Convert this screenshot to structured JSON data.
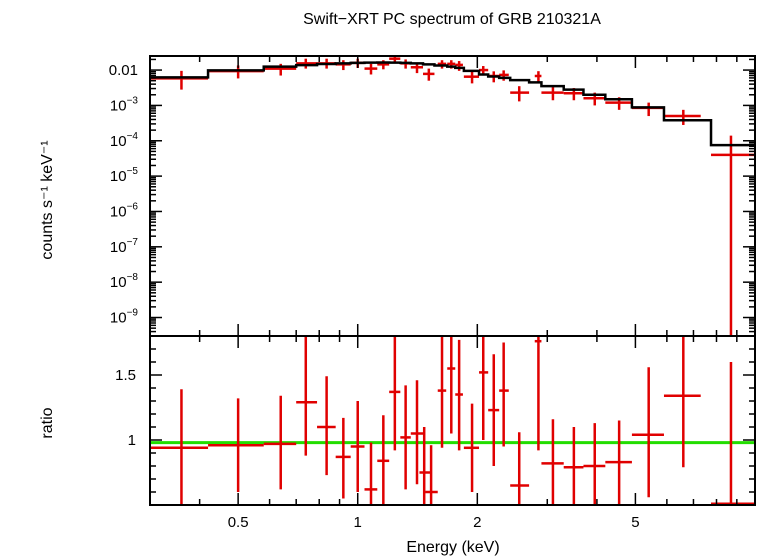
{
  "chart_data": {
    "type": "scatter",
    "title": "Swift−XRT PC spectrum of GRB 210321A",
    "xlabel": "Energy (keV)",
    "xscale": "log",
    "xlim": [
      0.3,
      10.0
    ],
    "xticks": [
      {
        "value": 0.5,
        "label": "0.5"
      },
      {
        "value": 1,
        "label": "1"
      },
      {
        "value": 2,
        "label": "2"
      },
      {
        "value": 5,
        "label": "5"
      }
    ],
    "top_panel": {
      "ylabel": "counts s⁻¹ keV⁻¹",
      "yscale": "log",
      "ylim": [
        3e-10,
        0.025
      ],
      "yticks": [
        {
          "value": 0.01,
          "label": "0.01"
        },
        {
          "value": 0.001,
          "base": "10",
          "exp": "−3"
        },
        {
          "value": 0.0001,
          "base": "10",
          "exp": "−4"
        },
        {
          "value": 1e-05,
          "base": "10",
          "exp": "−5"
        },
        {
          "value": 1e-06,
          "base": "10",
          "exp": "−6"
        },
        {
          "value": 1e-07,
          "base": "10",
          "exp": "−7"
        },
        {
          "value": 1e-08,
          "base": "10",
          "exp": "−8"
        },
        {
          "value": 1e-09,
          "base": "10",
          "exp": "−9"
        }
      ],
      "data_color": "#e00000",
      "model_color": "#000000",
      "data": [
        {
          "x": 0.36,
          "xlo": 0.3,
          "xhi": 0.42,
          "y": 0.0058,
          "ylo": 0.0028,
          "yhi": 0.0095
        },
        {
          "x": 0.5,
          "xlo": 0.42,
          "xhi": 0.58,
          "y": 0.0093,
          "ylo": 0.0058,
          "yhi": 0.0135
        },
        {
          "x": 0.64,
          "xlo": 0.58,
          "xhi": 0.7,
          "y": 0.011,
          "ylo": 0.007,
          "yhi": 0.015
        },
        {
          "x": 0.74,
          "xlo": 0.7,
          "xhi": 0.79,
          "y": 0.0155,
          "ylo": 0.011,
          "yhi": 0.021
        },
        {
          "x": 0.835,
          "xlo": 0.79,
          "xhi": 0.88,
          "y": 0.0155,
          "ylo": 0.011,
          "yhi": 0.021
        },
        {
          "x": 0.92,
          "xlo": 0.88,
          "xhi": 0.96,
          "y": 0.0145,
          "ylo": 0.01,
          "yhi": 0.019
        },
        {
          "x": 1.0,
          "xlo": 0.96,
          "xhi": 1.04,
          "y": 0.016,
          "ylo": 0.0115,
          "yhi": 0.021
        },
        {
          "x": 1.08,
          "xlo": 1.04,
          "xhi": 1.12,
          "y": 0.011,
          "ylo": 0.0075,
          "yhi": 0.015
        },
        {
          "x": 1.16,
          "xlo": 1.12,
          "xhi": 1.2,
          "y": 0.0145,
          "ylo": 0.0105,
          "yhi": 0.019
        },
        {
          "x": 1.24,
          "xlo": 1.2,
          "xhi": 1.28,
          "y": 0.021,
          "ylo": 0.016,
          "yhi": 0.026
        },
        {
          "x": 1.32,
          "xlo": 1.28,
          "xhi": 1.36,
          "y": 0.0155,
          "ylo": 0.011,
          "yhi": 0.02
        },
        {
          "x": 1.41,
          "xlo": 1.36,
          "xhi": 1.46,
          "y": 0.012,
          "ylo": 0.0082,
          "yhi": 0.016
        },
        {
          "x": 1.51,
          "xlo": 1.46,
          "xhi": 1.56,
          "y": 0.0078,
          "ylo": 0.005,
          "yhi": 0.011
        },
        {
          "x": 1.63,
          "xlo": 1.59,
          "xhi": 1.67,
          "y": 0.015,
          "ylo": 0.011,
          "yhi": 0.019
        },
        {
          "x": 1.72,
          "xlo": 1.68,
          "xhi": 1.76,
          "y": 0.015,
          "ylo": 0.011,
          "yhi": 0.019
        },
        {
          "x": 1.8,
          "xlo": 1.76,
          "xhi": 1.84,
          "y": 0.014,
          "ylo": 0.0095,
          "yhi": 0.018
        },
        {
          "x": 1.94,
          "xlo": 1.85,
          "xhi": 2.02,
          "y": 0.0065,
          "ylo": 0.0042,
          "yhi": 0.009
        },
        {
          "x": 2.07,
          "xlo": 2.02,
          "xhi": 2.13,
          "y": 0.01,
          "ylo": 0.007,
          "yhi": 0.013
        },
        {
          "x": 2.2,
          "xlo": 2.13,
          "xhi": 2.27,
          "y": 0.0068,
          "ylo": 0.0045,
          "yhi": 0.0092
        },
        {
          "x": 2.33,
          "xlo": 2.27,
          "xhi": 2.4,
          "y": 0.0073,
          "ylo": 0.005,
          "yhi": 0.0098
        },
        {
          "x": 2.55,
          "xlo": 2.42,
          "xhi": 2.7,
          "y": 0.0023,
          "ylo": 0.0013,
          "yhi": 0.0035
        },
        {
          "x": 2.85,
          "xlo": 2.79,
          "xhi": 2.9,
          "y": 0.0068,
          "ylo": 0.0045,
          "yhi": 0.0093
        },
        {
          "x": 3.1,
          "xlo": 2.9,
          "xhi": 3.3,
          "y": 0.0023,
          "ylo": 0.0014,
          "yhi": 0.0033
        },
        {
          "x": 3.5,
          "xlo": 3.3,
          "xhi": 3.7,
          "y": 0.0022,
          "ylo": 0.0014,
          "yhi": 0.0031
        },
        {
          "x": 3.95,
          "xlo": 3.7,
          "xhi": 4.2,
          "y": 0.0016,
          "ylo": 0.001,
          "yhi": 0.0023
        },
        {
          "x": 4.55,
          "xlo": 4.2,
          "xhi": 4.9,
          "y": 0.0012,
          "ylo": 0.00075,
          "yhi": 0.0017
        },
        {
          "x": 5.4,
          "xlo": 4.9,
          "xhi": 5.9,
          "y": 0.00085,
          "ylo": 0.0005,
          "yhi": 0.0012
        },
        {
          "x": 6.6,
          "xlo": 5.9,
          "xhi": 7.3,
          "y": 0.0005,
          "ylo": 0.00028,
          "yhi": 0.00075
        },
        {
          "x": 8.7,
          "xlo": 7.75,
          "xhi": 10.0,
          "y": 4e-05,
          "ylo": 3e-10,
          "yhi": 0.00014
        }
      ],
      "model": [
        {
          "xlo": 0.3,
          "xhi": 0.42,
          "y": 0.0062
        },
        {
          "xlo": 0.42,
          "xhi": 0.58,
          "y": 0.0098
        },
        {
          "xlo": 0.58,
          "xhi": 0.7,
          "y": 0.0125
        },
        {
          "xlo": 0.7,
          "xhi": 0.79,
          "y": 0.0138
        },
        {
          "xlo": 0.79,
          "xhi": 0.88,
          "y": 0.0148
        },
        {
          "xlo": 0.88,
          "xhi": 0.96,
          "y": 0.0155
        },
        {
          "xlo": 0.96,
          "xhi": 1.04,
          "y": 0.016
        },
        {
          "xlo": 1.04,
          "xhi": 1.12,
          "y": 0.0163
        },
        {
          "xlo": 1.12,
          "xhi": 1.2,
          "y": 0.0164
        },
        {
          "xlo": 1.2,
          "xhi": 1.28,
          "y": 0.0162
        },
        {
          "xlo": 1.28,
          "xhi": 1.36,
          "y": 0.016
        },
        {
          "xlo": 1.36,
          "xhi": 1.46,
          "y": 0.0155
        },
        {
          "xlo": 1.46,
          "xhi": 1.56,
          "y": 0.0145
        },
        {
          "xlo": 1.56,
          "xhi": 1.68,
          "y": 0.0135
        },
        {
          "xlo": 1.68,
          "xhi": 1.76,
          "y": 0.0125
        },
        {
          "xlo": 1.76,
          "xhi": 1.85,
          "y": 0.0115
        },
        {
          "xlo": 1.85,
          "xhi": 2.02,
          "y": 0.0095
        },
        {
          "xlo": 2.02,
          "xhi": 2.13,
          "y": 0.0075
        },
        {
          "xlo": 2.13,
          "xhi": 2.27,
          "y": 0.0066
        },
        {
          "xlo": 2.27,
          "xhi": 2.42,
          "y": 0.006
        },
        {
          "xlo": 2.42,
          "xhi": 2.7,
          "y": 0.0052
        },
        {
          "xlo": 2.7,
          "xhi": 2.9,
          "y": 0.0045
        },
        {
          "xlo": 2.9,
          "xhi": 3.3,
          "y": 0.0035
        },
        {
          "xlo": 3.3,
          "xhi": 3.7,
          "y": 0.0028
        },
        {
          "xlo": 3.7,
          "xhi": 4.2,
          "y": 0.002
        },
        {
          "xlo": 4.2,
          "xhi": 4.9,
          "y": 0.0015
        },
        {
          "xlo": 4.9,
          "xhi": 5.9,
          "y": 0.00088
        },
        {
          "xlo": 5.9,
          "xhi": 7.75,
          "y": 0.00038
        },
        {
          "xlo": 7.75,
          "xhi": 10.0,
          "y": 7.5e-05
        }
      ]
    },
    "bottom_panel": {
      "ylabel": "ratio",
      "yscale": "linear",
      "ylim": [
        0.5,
        1.8
      ],
      "yticks": [
        {
          "value": 1,
          "label": "1"
        },
        {
          "value": 1.5,
          "label": "1.5"
        }
      ],
      "reference_line": {
        "y": 0.98,
        "color": "#22dd00"
      },
      "data_color": "#e00000",
      "data": [
        {
          "x": 0.36,
          "xlo": 0.3,
          "xhi": 0.42,
          "y": 0.94,
          "ylo": 0.5,
          "yhi": 1.39
        },
        {
          "x": 0.5,
          "xlo": 0.42,
          "xhi": 0.58,
          "y": 0.96,
          "ylo": 0.6,
          "yhi": 1.32
        },
        {
          "x": 0.64,
          "xlo": 0.58,
          "xhi": 0.7,
          "y": 0.97,
          "ylo": 0.62,
          "yhi": 1.34
        },
        {
          "x": 0.74,
          "xlo": 0.7,
          "xhi": 0.79,
          "y": 1.29,
          "ylo": 0.88,
          "yhi": 1.8
        },
        {
          "x": 0.835,
          "xlo": 0.79,
          "xhi": 0.88,
          "y": 1.1,
          "ylo": 0.73,
          "yhi": 1.49
        },
        {
          "x": 0.92,
          "xlo": 0.88,
          "xhi": 0.96,
          "y": 0.87,
          "ylo": 0.55,
          "yhi": 1.17
        },
        {
          "x": 1.0,
          "xlo": 0.96,
          "xhi": 1.04,
          "y": 0.95,
          "ylo": 0.6,
          "yhi": 1.3
        },
        {
          "x": 1.08,
          "xlo": 1.04,
          "xhi": 1.12,
          "y": 0.62,
          "ylo": 0.5,
          "yhi": 0.98
        },
        {
          "x": 1.16,
          "xlo": 1.12,
          "xhi": 1.2,
          "y": 0.84,
          "ylo": 0.5,
          "yhi": 1.19
        },
        {
          "x": 1.24,
          "xlo": 1.2,
          "xhi": 1.28,
          "y": 1.37,
          "ylo": 0.92,
          "yhi": 1.8
        },
        {
          "x": 1.32,
          "xlo": 1.28,
          "xhi": 1.36,
          "y": 1.02,
          "ylo": 0.62,
          "yhi": 1.42
        },
        {
          "x": 1.41,
          "xlo": 1.36,
          "xhi": 1.46,
          "y": 1.05,
          "ylo": 0.66,
          "yhi": 1.46
        },
        {
          "x": 1.47,
          "xlo": 1.43,
          "xhi": 1.52,
          "y": 0.75,
          "ylo": 0.5,
          "yhi": 1.1
        },
        {
          "x": 1.53,
          "xlo": 1.48,
          "xhi": 1.59,
          "y": 0.6,
          "ylo": 0.5,
          "yhi": 0.96
        },
        {
          "x": 1.63,
          "xlo": 1.59,
          "xhi": 1.67,
          "y": 1.38,
          "ylo": 0.94,
          "yhi": 1.8
        },
        {
          "x": 1.72,
          "xlo": 1.68,
          "xhi": 1.76,
          "y": 1.55,
          "ylo": 1.05,
          "yhi": 1.8
        },
        {
          "x": 1.8,
          "xlo": 1.76,
          "xhi": 1.84,
          "y": 1.35,
          "ylo": 0.92,
          "yhi": 1.77
        },
        {
          "x": 1.94,
          "xlo": 1.85,
          "xhi": 2.02,
          "y": 0.94,
          "ylo": 0.6,
          "yhi": 1.28
        },
        {
          "x": 2.07,
          "xlo": 2.02,
          "xhi": 2.13,
          "y": 1.52,
          "ylo": 1.0,
          "yhi": 1.8
        },
        {
          "x": 2.2,
          "xlo": 2.13,
          "xhi": 2.27,
          "y": 1.23,
          "ylo": 0.8,
          "yhi": 1.66
        },
        {
          "x": 2.33,
          "xlo": 2.27,
          "xhi": 2.4,
          "y": 1.38,
          "ylo": 0.95,
          "yhi": 1.75
        },
        {
          "x": 2.55,
          "xlo": 2.42,
          "xhi": 2.7,
          "y": 0.65,
          "ylo": 0.5,
          "yhi": 1.06
        },
        {
          "x": 2.85,
          "xlo": 2.79,
          "xhi": 2.9,
          "y": 1.76,
          "ylo": 0.92,
          "yhi": 1.8
        },
        {
          "x": 3.1,
          "xlo": 2.9,
          "xhi": 3.3,
          "y": 0.82,
          "ylo": 0.5,
          "yhi": 1.16
        },
        {
          "x": 3.5,
          "xlo": 3.3,
          "xhi": 3.7,
          "y": 0.79,
          "ylo": 0.5,
          "yhi": 1.1
        },
        {
          "x": 3.95,
          "xlo": 3.7,
          "xhi": 4.2,
          "y": 0.8,
          "ylo": 0.5,
          "yhi": 1.13
        },
        {
          "x": 4.55,
          "xlo": 4.2,
          "xhi": 4.9,
          "y": 0.83,
          "ylo": 0.5,
          "yhi": 1.15
        },
        {
          "x": 5.4,
          "xlo": 4.9,
          "xhi": 5.9,
          "y": 1.04,
          "ylo": 0.56,
          "yhi": 1.56
        },
        {
          "x": 6.6,
          "xlo": 5.9,
          "xhi": 7.3,
          "y": 1.34,
          "ylo": 0.79,
          "yhi": 1.88
        },
        {
          "x": 8.7,
          "xlo": 7.75,
          "xhi": 10.0,
          "y": 0.51,
          "ylo": 0.5,
          "yhi": 1.6
        }
      ]
    }
  }
}
